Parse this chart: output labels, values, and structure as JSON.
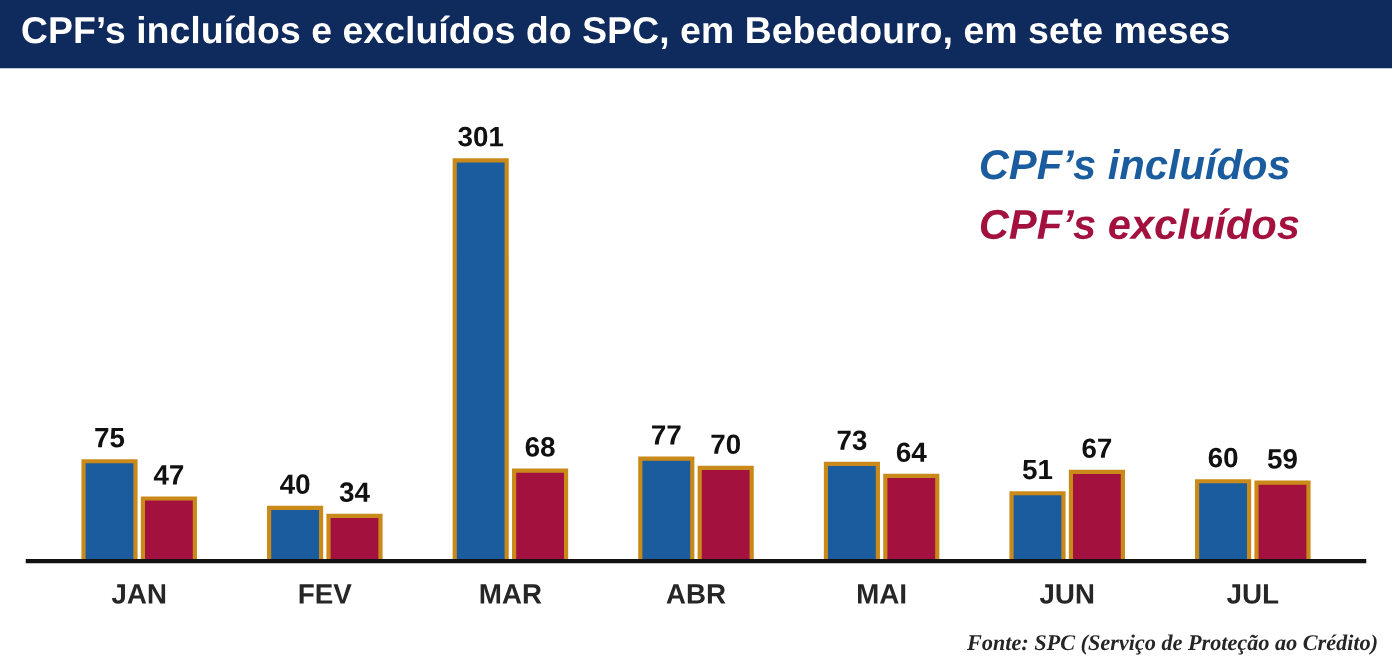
{
  "chart_data": {
    "type": "bar",
    "title": "CPF’s incluídos e excluídos do SPC, em Bebedouro, em sete meses",
    "categories": [
      "JAN",
      "FEV",
      "MAR",
      "ABR",
      "MAI",
      "JUN",
      "JUL"
    ],
    "series": [
      {
        "name": "CPF’s incluídos",
        "color": "#1b5c9e",
        "values": [
          75,
          40,
          301,
          77,
          73,
          51,
          60
        ]
      },
      {
        "name": "CPF’s excluídos",
        "color": "#a3123f",
        "values": [
          47,
          34,
          68,
          70,
          64,
          67,
          59
        ]
      }
    ],
    "data_labels": true,
    "legend": "top right",
    "grid": false,
    "annotations": [
      "Fonte: SPC (Serviço de Proteção ao Crédito)"
    ]
  }
}
